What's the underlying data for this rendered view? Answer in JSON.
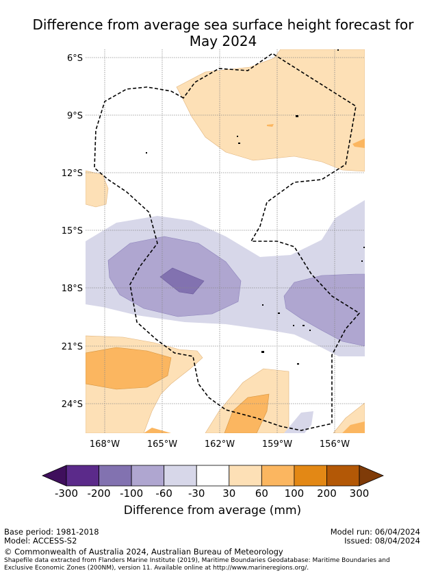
{
  "title": {
    "line1": "Difference from average sea surface height forecast for",
    "line2": "May 2024"
  },
  "axes": {
    "lat_labels": [
      "6°S",
      "9°S",
      "12°S",
      "15°S",
      "18°S",
      "21°S",
      "24°S"
    ],
    "lon_labels": [
      "168°W",
      "165°W",
      "162°W",
      "159°W",
      "156°W"
    ]
  },
  "legend": {
    "title": "Difference from average (mm)",
    "ticks": [
      "-300",
      "-200",
      "-100",
      "-60",
      "-30",
      "30",
      "60",
      "100",
      "200",
      "300"
    ],
    "colors": [
      "#3f0f5c",
      "#5b2a8a",
      "#8272b0",
      "#afa6d0",
      "#d7d7e9",
      "#ffffff",
      "#fde0b6",
      "#fbb660",
      "#e38815",
      "#b35806",
      "#7f3b08"
    ]
  },
  "footer": {
    "base_period": "Base period: 1981-2018",
    "model": "Model: ACCESS-S2",
    "model_run": "Model run: 06/04/2024",
    "issued": "Issued: 08/04/2024",
    "copyright": "© Commonwealth of Australia 2024, Australian Bureau of Meteorology",
    "shapefile_line1": "Shapefile data extracted from Flanders Marine Institute (2019), Maritime Boundaries Geodatabase: Maritime Boundaries and",
    "shapefile_line2": "Exclusive Economic Zones (200NM), version 11. Available online at http://www.marineregions.org/."
  }
}
